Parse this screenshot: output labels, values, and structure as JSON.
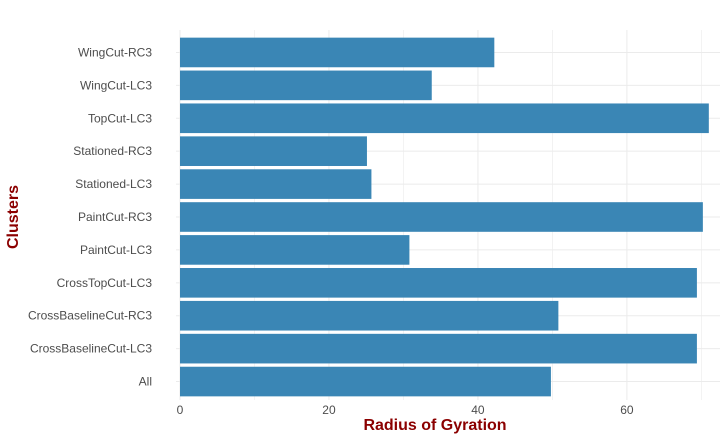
{
  "chart_data": {
    "type": "bar",
    "orientation": "horizontal",
    "categories": [
      "All",
      "CrossBaselineCut-LC3",
      "CrossBaselineCut-RC3",
      "CrossTopCut-LC3",
      "PaintCut-LC3",
      "PaintCut-RC3",
      "Stationed-LC3",
      "Stationed-RC3",
      "TopCut-LC3",
      "WingCut-LC3",
      "WingCut-RC3"
    ],
    "values": [
      49.8,
      69.4,
      50.8,
      69.4,
      30.8,
      70.2,
      25.7,
      25.1,
      71.0,
      33.8,
      42.2
    ],
    "xlabel": "Radius of Gyration",
    "ylabel": "Clusters",
    "xlim": [
      0,
      72.5
    ],
    "xticks": [
      "0",
      "20",
      "40",
      "60"
    ],
    "grid": true,
    "colors": {
      "bar": "#3a86b5",
      "axis_title": "#8b0000",
      "grid": "#ebebeb",
      "tick_text": "#4d4d4d"
    }
  }
}
